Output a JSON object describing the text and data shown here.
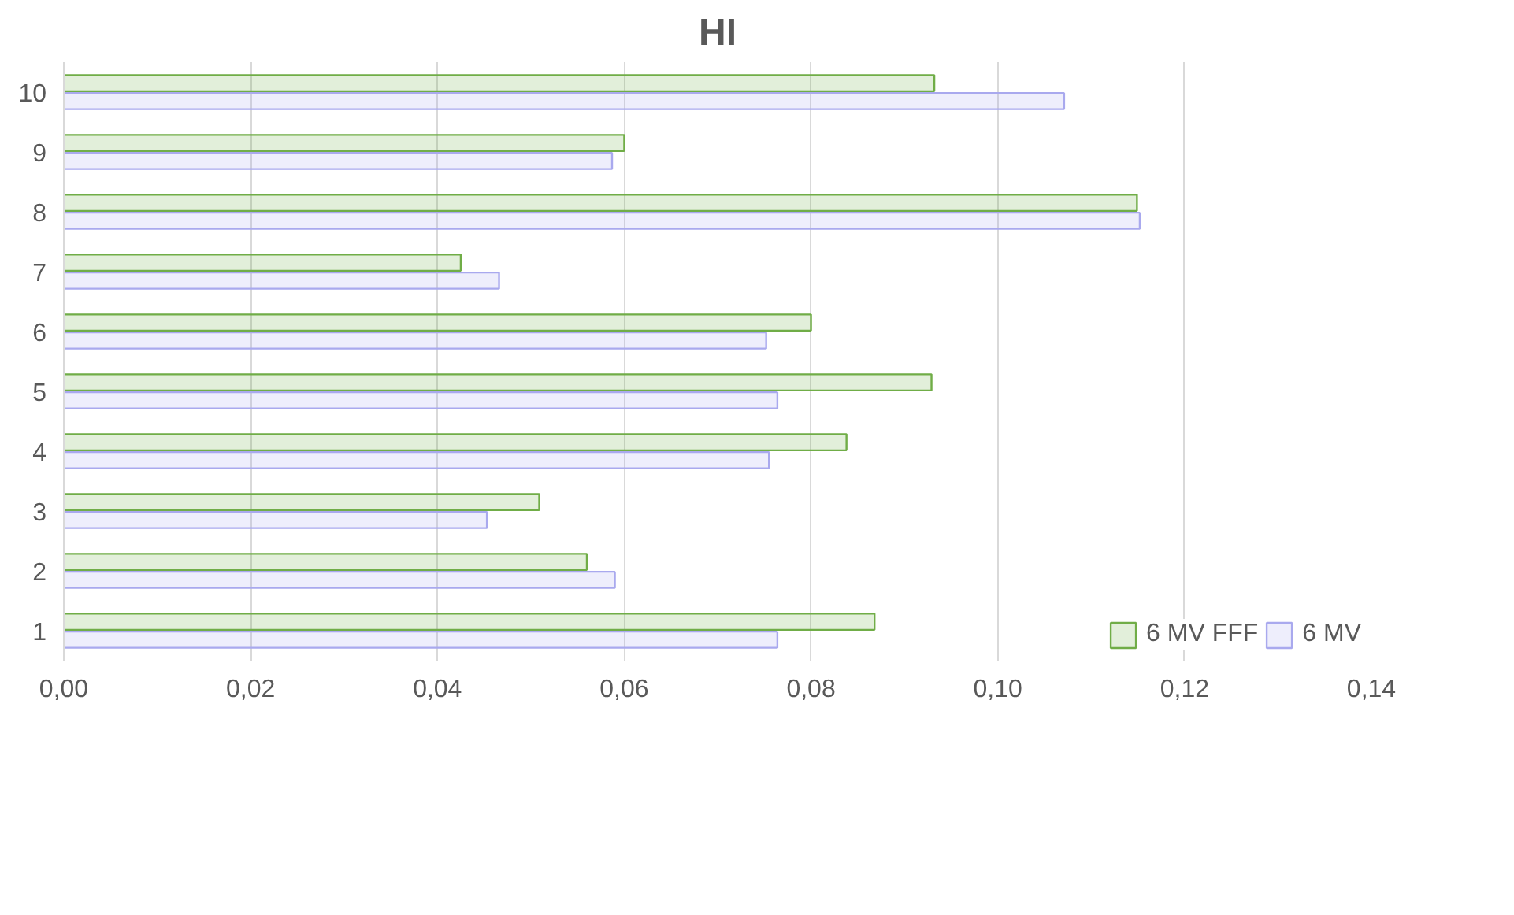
{
  "chart_data": {
    "type": "bar",
    "orientation": "horizontal",
    "title": "HI",
    "categories": [
      "10",
      "9",
      "8",
      "7",
      "6",
      "5",
      "4",
      "3",
      "2",
      "1"
    ],
    "series": [
      {
        "name": "6 MV FFF",
        "color": "#70ad47",
        "values": [
          0.0932,
          0.06,
          0.1149,
          0.0425,
          0.08,
          0.0929,
          0.0838,
          0.0509,
          0.056,
          0.0868
        ]
      },
      {
        "name": "6 MV",
        "color": "#a9a9ee",
        "values": [
          0.1071,
          0.0587,
          0.1152,
          0.0466,
          0.0752,
          0.0764,
          0.0755,
          0.0453,
          0.059,
          0.0764
        ]
      }
    ],
    "xlim": [
      0,
      0.14
    ],
    "xticks": [
      {
        "value": 0,
        "label": "0,00"
      },
      {
        "value": 0.02,
        "label": "0,02"
      },
      {
        "value": 0.04,
        "label": "0,04"
      },
      {
        "value": 0.06,
        "label": "0,06"
      },
      {
        "value": 0.08,
        "label": "0,08"
      },
      {
        "value": 0.1,
        "label": "0,10"
      },
      {
        "value": 0.12,
        "label": "0,12"
      },
      {
        "value": 0.14,
        "label": "0,14"
      }
    ],
    "grid": "x",
    "legend": "bottom"
  }
}
